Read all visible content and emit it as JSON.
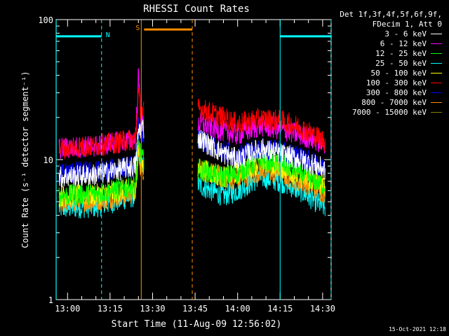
{
  "chart_data": {
    "type": "line",
    "title": "RHESSI Count Rates",
    "xlabel": "Start Time (11-Aug-09 12:56:02)",
    "ylabel": "Count Rate (s⁻¹ detector segment⁻¹)",
    "yscale": "log",
    "ylim": [
      1,
      100
    ],
    "y_tick_labels": [
      "1",
      "10",
      "100"
    ],
    "xlim": [
      "12:56",
      "14:33"
    ],
    "x_tick_labels": [
      "13:00",
      "13:15",
      "13:30",
      "13:45",
      "14:00",
      "14:15",
      "14:30"
    ],
    "grid": false,
    "legend_position": "top-right",
    "legend_header": [
      "Det 1f,3f,4f,5f,6f,9f,",
      "FDecim 1, Att 0"
    ],
    "series": [
      {
        "name": "3 - 6 keV",
        "color": "#ffffff",
        "x": [
          "12:57",
          "13:10",
          "13:24",
          "13:25",
          "13:26",
          "13:47",
          "13:55",
          "14:00",
          "14:08",
          "14:15",
          "14:22",
          "14:31"
        ],
        "y": [
          7.5,
          7.8,
          9.0,
          16,
          17,
          14,
          11,
          10,
          12,
          11,
          10,
          8.5
        ]
      },
      {
        "name": "6 - 12 keV",
        "color": "#ff00ff",
        "x": [
          "12:57",
          "13:10",
          "13:24",
          "13:25",
          "13:26",
          "13:47",
          "13:55",
          "14:00",
          "14:08",
          "14:15",
          "14:22",
          "14:31"
        ],
        "y": [
          12,
          12.5,
          14,
          40,
          18,
          18,
          16,
          15,
          17.5,
          16.5,
          15,
          13
        ]
      },
      {
        "name": "12 - 25 keV",
        "color": "#00ff00",
        "x": [
          "12:57",
          "13:10",
          "13:24",
          "13:25",
          "13:26",
          "13:47",
          "13:55",
          "14:00",
          "14:08",
          "14:15",
          "14:22",
          "14:31"
        ],
        "y": [
          5.5,
          5.7,
          6.5,
          14,
          10,
          8.5,
          7.5,
          8,
          10,
          9.5,
          8,
          6.5
        ]
      },
      {
        "name": "25 - 50 keV",
        "color": "#00ffff",
        "x": [
          "12:57",
          "13:10",
          "13:24",
          "13:25",
          "13:26",
          "13:47",
          "13:55",
          "14:00",
          "14:08",
          "14:15",
          "14:22",
          "14:31"
        ],
        "y": [
          4.5,
          4.6,
          5.5,
          12,
          9,
          6.5,
          5.5,
          6,
          7.5,
          7,
          6,
          4.5
        ]
      },
      {
        "name": "50 - 100 keV",
        "color": "#ffff00",
        "x": [
          "12:57",
          "13:10",
          "13:24",
          "13:25",
          "13:26",
          "13:47",
          "13:55",
          "14:00",
          "14:08",
          "14:15",
          "14:22",
          "14:31"
        ],
        "y": [
          5.5,
          5.6,
          6.2,
          12,
          9.5,
          8.5,
          7.5,
          8,
          9.5,
          9,
          7.5,
          6.5
        ]
      },
      {
        "name": "100 - 300 keV",
        "color": "#ff0000",
        "x": [
          "12:57",
          "13:10",
          "13:24",
          "13:25",
          "13:26",
          "13:47",
          "13:55",
          "14:00",
          "14:08",
          "14:15",
          "14:22",
          "14:31"
        ],
        "y": [
          12,
          12.5,
          14,
          30,
          22,
          23,
          20,
          18,
          19.5,
          19,
          17,
          13.5
        ]
      },
      {
        "name": "300 - 800 keV",
        "color": "#0000ff",
        "x": [
          "12:57",
          "13:10",
          "13:24",
          "13:25",
          "13:26",
          "13:47",
          "13:55",
          "14:00",
          "14:08",
          "14:15",
          "14:22",
          "14:31"
        ],
        "y": [
          8,
          8.2,
          9,
          17,
          15,
          13.5,
          11.5,
          10.5,
          12,
          11.5,
          10.5,
          8.5
        ]
      },
      {
        "name": "800 - 7000 keV",
        "color": "#ff8c00",
        "x": [
          "12:57",
          "13:10",
          "13:24",
          "13:25",
          "13:26",
          "13:47",
          "13:55",
          "14:00",
          "14:08",
          "14:15",
          "14:22",
          "14:31"
        ],
        "y": [
          5.0,
          5.1,
          5.8,
          11,
          8.5,
          8.5,
          7.5,
          7.2,
          8.3,
          8,
          7,
          5.8
        ]
      },
      {
        "name": "7000 - 15000 keV",
        "color": "#808000",
        "x": [],
        "y": []
      }
    ],
    "annotations": [
      {
        "label": "N",
        "color": "#00ffff",
        "start": "12:56",
        "end": "13:12",
        "level": 76
      },
      {
        "label": "S",
        "color": "#ff8c00",
        "start": "13:27",
        "end": "13:44",
        "level": 85
      },
      {
        "label": "",
        "color": "#00ffff",
        "start": "14:15",
        "end": "14:33",
        "level": 76
      }
    ],
    "vertical_markers": [
      {
        "time": "12:56",
        "color": "#00ffff",
        "style": "solid"
      },
      {
        "time": "13:12",
        "color": "#00ffff",
        "style": "dashed"
      },
      {
        "time": "13:26",
        "color": "#ff8c00",
        "style": "solid"
      },
      {
        "time": "13:44",
        "color": "#ff8c00",
        "style": "dashed"
      },
      {
        "time": "14:15",
        "color": "#00ffff",
        "style": "solid"
      },
      {
        "time": "14:33",
        "color": "#00ffff",
        "style": "dashed"
      }
    ]
  },
  "footer": {
    "timestamp": "15-Oct-2021 12:18"
  }
}
